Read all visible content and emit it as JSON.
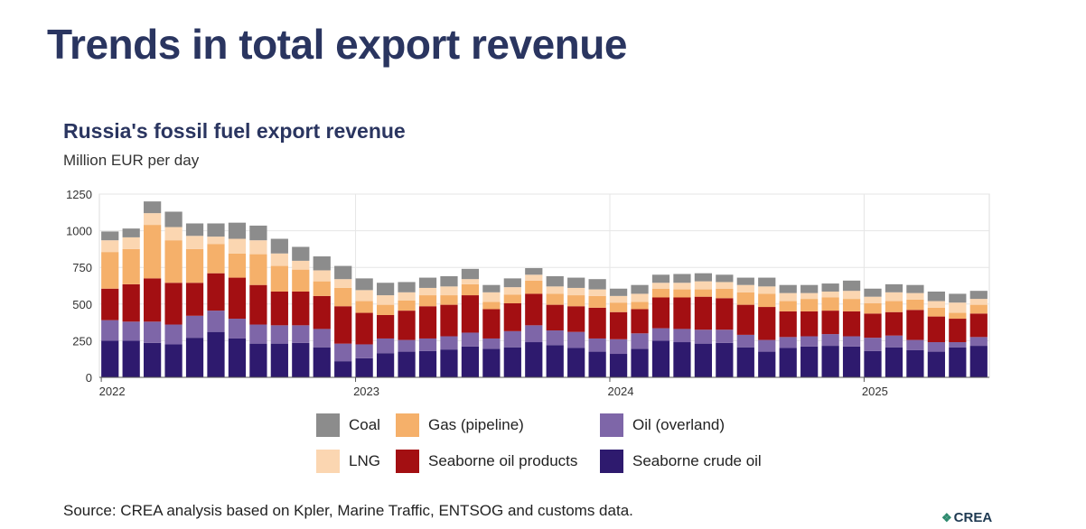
{
  "page": {
    "title": "Trends in total export revenue",
    "source": "Source: CREA analysis based on Kpler, Marine Traffic, ENTSOG and customs data.",
    "logo_text": "CREA"
  },
  "chart_data": {
    "type": "bar",
    "stacked": true,
    "title": "Russia's fossil fuel export revenue",
    "subtitle": "Million EUR per day",
    "xlabel": "",
    "ylabel": "",
    "ylim": [
      0,
      1250
    ],
    "yticks": [
      0,
      250,
      500,
      750,
      1000,
      1250
    ],
    "grid": true,
    "legend_position": "bottom",
    "x_tick_labels": [
      {
        "label": "2022",
        "index": 0
      },
      {
        "label": "2023",
        "index": 12
      },
      {
        "label": "2024",
        "index": 24
      },
      {
        "label": "2025",
        "index": 36
      }
    ],
    "categories": [
      "2022-01",
      "2022-02",
      "2022-03",
      "2022-04",
      "2022-05",
      "2022-06",
      "2022-07",
      "2022-08",
      "2022-09",
      "2022-10",
      "2022-11",
      "2022-12",
      "2023-01",
      "2023-02",
      "2023-03",
      "2023-04",
      "2023-05",
      "2023-06",
      "2023-07",
      "2023-08",
      "2023-09",
      "2023-10",
      "2023-11",
      "2023-12",
      "2024-01",
      "2024-02",
      "2024-03",
      "2024-04",
      "2024-05",
      "2024-06",
      "2024-07",
      "2024-08",
      "2024-09",
      "2024-10",
      "2024-11",
      "2024-12",
      "2025-01",
      "2025-02",
      "2025-03",
      "2025-04",
      "2025-05",
      "2025-06"
    ],
    "series": [
      {
        "name": "Seaborne crude oil",
        "color": "#2e1a6e",
        "values": [
          250,
          250,
          235,
          225,
          270,
          310,
          265,
          230,
          230,
          235,
          205,
          110,
          130,
          165,
          175,
          180,
          190,
          210,
          195,
          205,
          240,
          220,
          200,
          175,
          160,
          195,
          250,
          240,
          230,
          235,
          205,
          175,
          200,
          210,
          215,
          210,
          180,
          205,
          185,
          175,
          205,
          215
        ]
      },
      {
        "name": "Oil (overland)",
        "color": "#7e66a8",
        "values": [
          140,
          130,
          145,
          135,
          150,
          145,
          135,
          130,
          125,
          120,
          125,
          120,
          95,
          100,
          80,
          85,
          90,
          95,
          70,
          110,
          115,
          100,
          110,
          90,
          100,
          105,
          85,
          90,
          95,
          90,
          85,
          80,
          75,
          70,
          80,
          70,
          90,
          80,
          70,
          65,
          35,
          60
        ]
      },
      {
        "name": "Seaborne oil products",
        "color": "#a30f12",
        "values": [
          215,
          255,
          295,
          285,
          225,
          255,
          280,
          270,
          230,
          230,
          225,
          255,
          215,
          160,
          200,
          220,
          215,
          255,
          200,
          190,
          215,
          175,
          175,
          210,
          185,
          165,
          210,
          215,
          225,
          215,
          205,
          225,
          175,
          170,
          160,
          170,
          165,
          160,
          205,
          175,
          160,
          160
        ]
      },
      {
        "name": "Gas (pipeline)",
        "color": "#f5b06a",
        "values": [
          250,
          240,
          365,
          290,
          230,
          200,
          165,
          210,
          175,
          150,
          100,
          125,
          80,
          70,
          70,
          75,
          65,
          75,
          50,
          60,
          90,
          75,
          75,
          80,
          65,
          50,
          60,
          55,
          50,
          65,
          85,
          90,
          70,
          85,
          90,
          85,
          70,
          75,
          70,
          60,
          40,
          60
        ]
      },
      {
        "name": "LNG",
        "color": "#fbd6b1",
        "values": [
          80,
          80,
          80,
          90,
          90,
          50,
          100,
          95,
          85,
          60,
          75,
          60,
          75,
          65,
          55,
          50,
          60,
          35,
          65,
          50,
          40,
          50,
          50,
          45,
          45,
          55,
          40,
          45,
          55,
          45,
          50,
          50,
          55,
          40,
          40,
          55,
          45,
          60,
          45,
          45,
          70,
          40
        ]
      },
      {
        "name": "Coal",
        "color": "#8c8c8c",
        "values": [
          60,
          60,
          80,
          105,
          85,
          90,
          110,
          100,
          100,
          95,
          95,
          90,
          80,
          85,
          70,
          70,
          70,
          70,
          50,
          60,
          45,
          70,
          70,
          70,
          50,
          60,
          55,
          60,
          55,
          50,
          50,
          60,
          55,
          55,
          55,
          70,
          55,
          55,
          55,
          65,
          60,
          55
        ]
      }
    ],
    "legend": [
      {
        "name": "Coal",
        "color": "#8c8c8c"
      },
      {
        "name": "Gas (pipeline)",
        "color": "#f5b06a"
      },
      {
        "name": "Oil (overland)",
        "color": "#7e66a8"
      },
      {
        "name": "LNG",
        "color": "#fbd6b1"
      },
      {
        "name": "Seaborne oil products",
        "color": "#a30f12"
      },
      {
        "name": "Seaborne crude oil",
        "color": "#2e1a6e"
      }
    ]
  }
}
